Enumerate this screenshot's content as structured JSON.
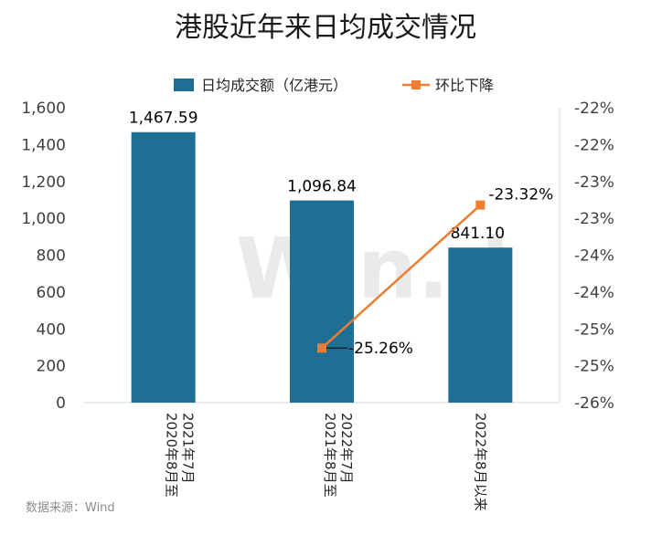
{
  "watermark": "Win.d",
  "source": "数据来源：Wind",
  "colors": {
    "bar": "#1f6f95",
    "line": "#ed7d31"
  },
  "chart_data": {
    "type": "bar",
    "title": "港股近年来日均成交情况",
    "categories": [
      "2020年8月至\n2021年7月",
      "2021年8月至\n2022年7月",
      "2022年8月以来"
    ],
    "series": [
      {
        "name": "日均成交额（亿港元）",
        "type": "bar",
        "axis": "left",
        "values": [
          1467.59,
          1096.84,
          841.1
        ],
        "labels": [
          "1,467.59",
          "1,096.84",
          "841.10"
        ]
      },
      {
        "name": "环比下降",
        "type": "line",
        "axis": "right",
        "values": [
          null,
          -25.26,
          -23.32
        ],
        "labels": [
          "",
          "-25.26%",
          "-23.32%"
        ]
      }
    ],
    "y_left": {
      "min": 0,
      "max": 1600,
      "ticks": [
        "0",
        "200",
        "400",
        "600",
        "800",
        "1,000",
        "1,200",
        "1,400",
        "1,600"
      ]
    },
    "y_right": {
      "min": -26,
      "max": -22,
      "ticks": [
        "-26%",
        "-25%",
        "-25%",
        "-24%",
        "-24%",
        "-23%",
        "-23%",
        "-22%",
        "-22%"
      ]
    },
    "legend": "top",
    "grid": false
  }
}
